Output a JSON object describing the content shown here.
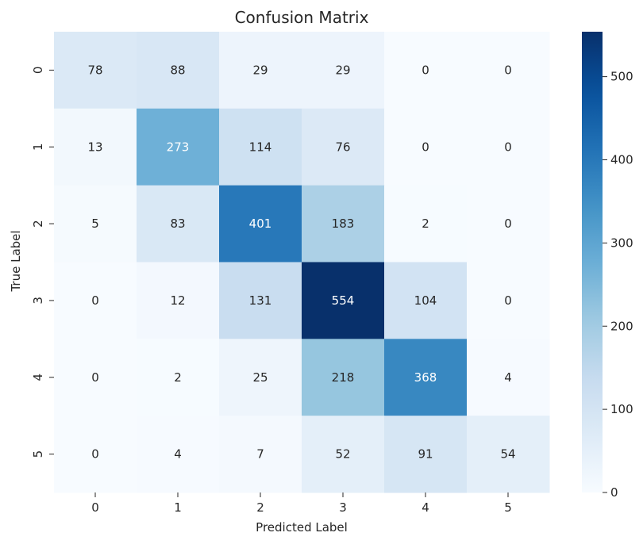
{
  "chart_data": {
    "type": "heatmap",
    "title": "Confusion Matrix",
    "xlabel": "Predicted Label",
    "ylabel": "True Label",
    "x_categories": [
      "0",
      "1",
      "2",
      "3",
      "4",
      "5"
    ],
    "y_categories": [
      "0",
      "1",
      "2",
      "3",
      "4",
      "5"
    ],
    "values": [
      [
        78,
        88,
        29,
        29,
        0,
        0
      ],
      [
        13,
        273,
        114,
        76,
        0,
        0
      ],
      [
        5,
        83,
        401,
        183,
        2,
        0
      ],
      [
        0,
        12,
        131,
        554,
        104,
        0
      ],
      [
        0,
        2,
        25,
        218,
        368,
        4
      ],
      [
        0,
        4,
        7,
        52,
        91,
        54
      ]
    ],
    "colorbar": {
      "min": 0,
      "max": 554,
      "ticks": [
        0,
        100,
        200,
        300,
        400,
        500
      ],
      "colormap": "Blues",
      "low_color": "#f7fbff",
      "high_color": "#08306b"
    },
    "annotation_text_dark": "#262626",
    "annotation_text_light": "#ffffff"
  }
}
